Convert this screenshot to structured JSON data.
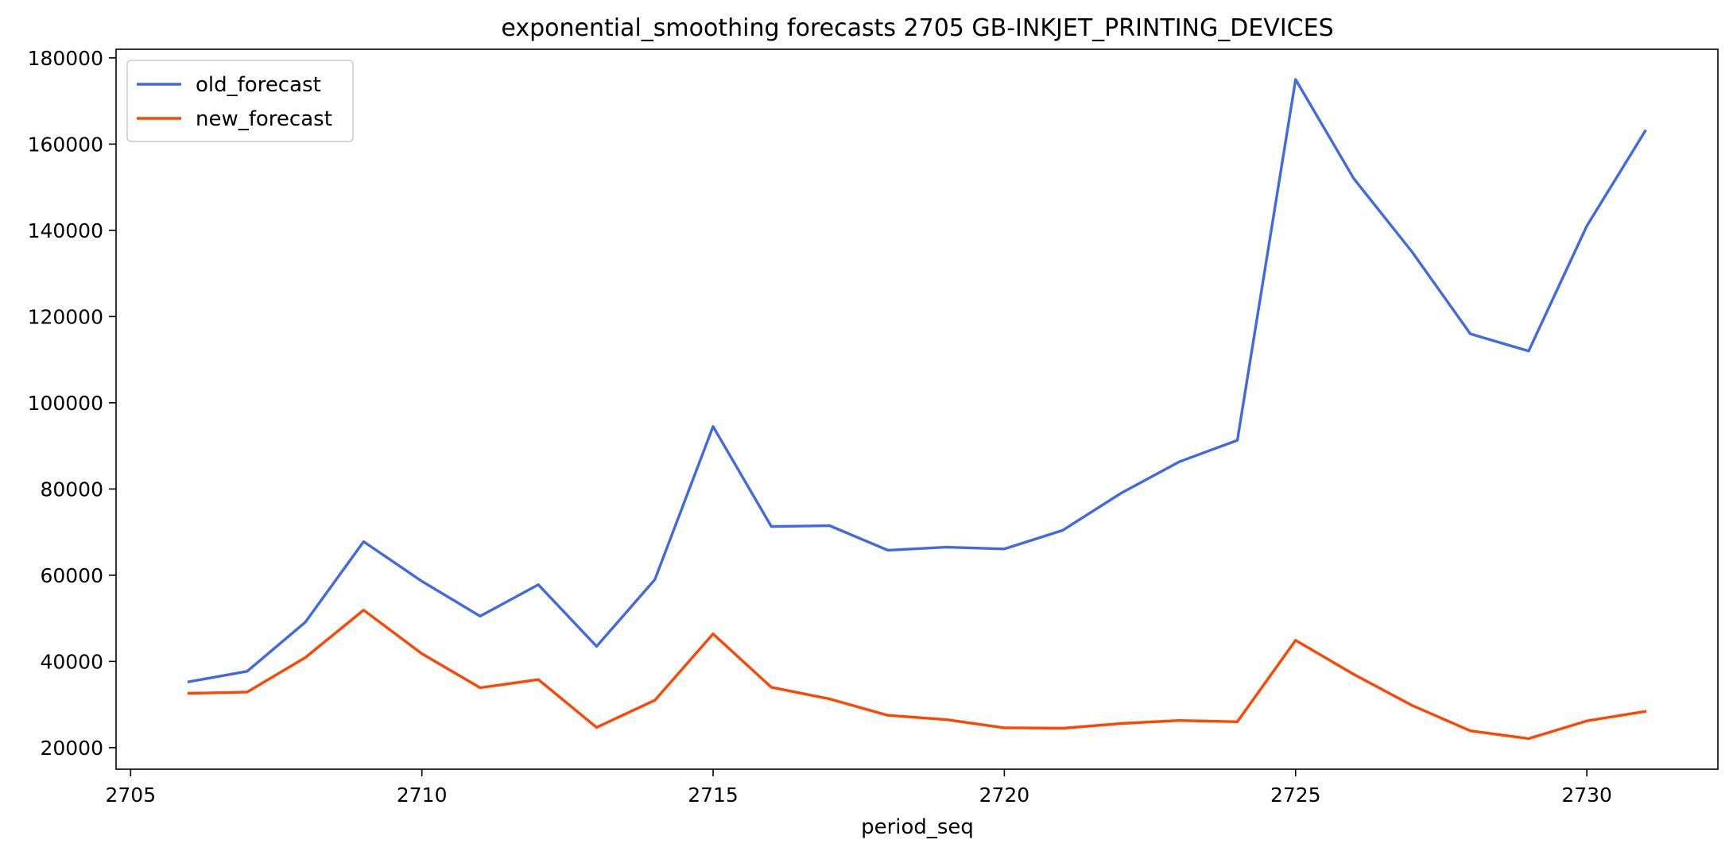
{
  "colors": {
    "old_forecast": "#4169e1",
    "new_forecast": "#ff4500"
  },
  "chart_data": {
    "type": "line",
    "title": "exponential_smoothing forecasts 2705 GB-INKJET_PRINTING_DEVICES",
    "xlabel": "period_seq",
    "ylabel": "",
    "x": [
      2706,
      2707,
      2708,
      2709,
      2710,
      2711,
      2712,
      2713,
      2714,
      2715,
      2716,
      2717,
      2718,
      2719,
      2720,
      2721,
      2722,
      2723,
      2724,
      2725,
      2726,
      2727,
      2728,
      2729,
      2730,
      2731
    ],
    "series": [
      {
        "name": "old_forecast",
        "values": [
          35300,
          37700,
          49100,
          67800,
          58600,
          50500,
          57800,
          43500,
          59000,
          94500,
          71300,
          71500,
          65800,
          66500,
          66100,
          70400,
          79000,
          86300,
          91300,
          175000,
          152000,
          135000,
          116000,
          112000,
          141000,
          163000
        ]
      },
      {
        "name": "new_forecast",
        "values": [
          32600,
          32900,
          40900,
          51900,
          41800,
          33900,
          35800,
          24700,
          31000,
          46400,
          34000,
          31300,
          27500,
          26500,
          24600,
          24500,
          25600,
          26300,
          26000,
          44900,
          37000,
          29800,
          23900,
          22100,
          26200,
          28400
        ]
      }
    ],
    "xlim": [
      2704.75,
      2732.25
    ],
    "ylim": [
      15000,
      182000
    ],
    "xticks": [
      2705,
      2710,
      2715,
      2720,
      2725,
      2730
    ],
    "yticks": [
      20000,
      40000,
      60000,
      80000,
      100000,
      120000,
      140000,
      160000,
      180000
    ],
    "grid": false,
    "legend": "top-left"
  }
}
